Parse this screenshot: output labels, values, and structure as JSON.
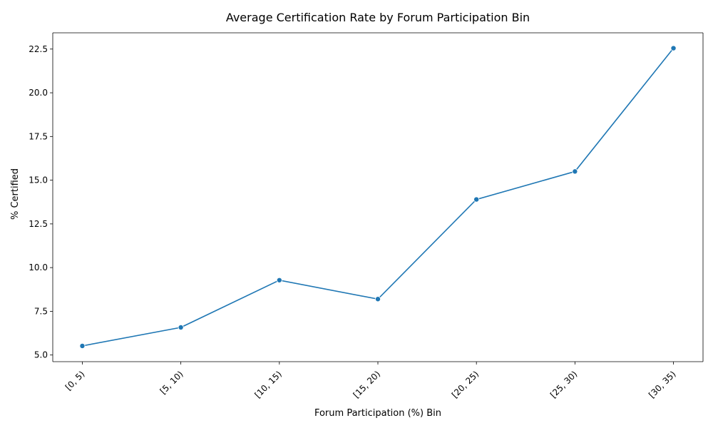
{
  "chart_data": {
    "type": "line",
    "title": "Average Certification Rate by Forum Participation Bin",
    "xlabel": "Forum Participation (%) Bin",
    "ylabel": "% Certified",
    "categories": [
      "[0, 5)",
      "[5, 10)",
      "[10, 15)",
      "[15, 20)",
      "[20, 25)",
      "[25, 30)",
      "[30, 35)"
    ],
    "series": [
      {
        "values": [
          5.52,
          6.58,
          9.28,
          8.2,
          13.9,
          15.5,
          22.55
        ],
        "color": "#1f77b4"
      }
    ],
    "ylim": [
      4.62,
      23.43
    ],
    "yticks": [
      5.0,
      7.5,
      10.0,
      12.5,
      15.0,
      17.5,
      20.0,
      22.5
    ],
    "ytick_labels": [
      "5.0",
      "7.5",
      "10.0",
      "12.5",
      "15.0",
      "17.5",
      "20.0",
      "22.5"
    ],
    "grid": false,
    "legend": "none",
    "xtick_rotation": 45
  }
}
